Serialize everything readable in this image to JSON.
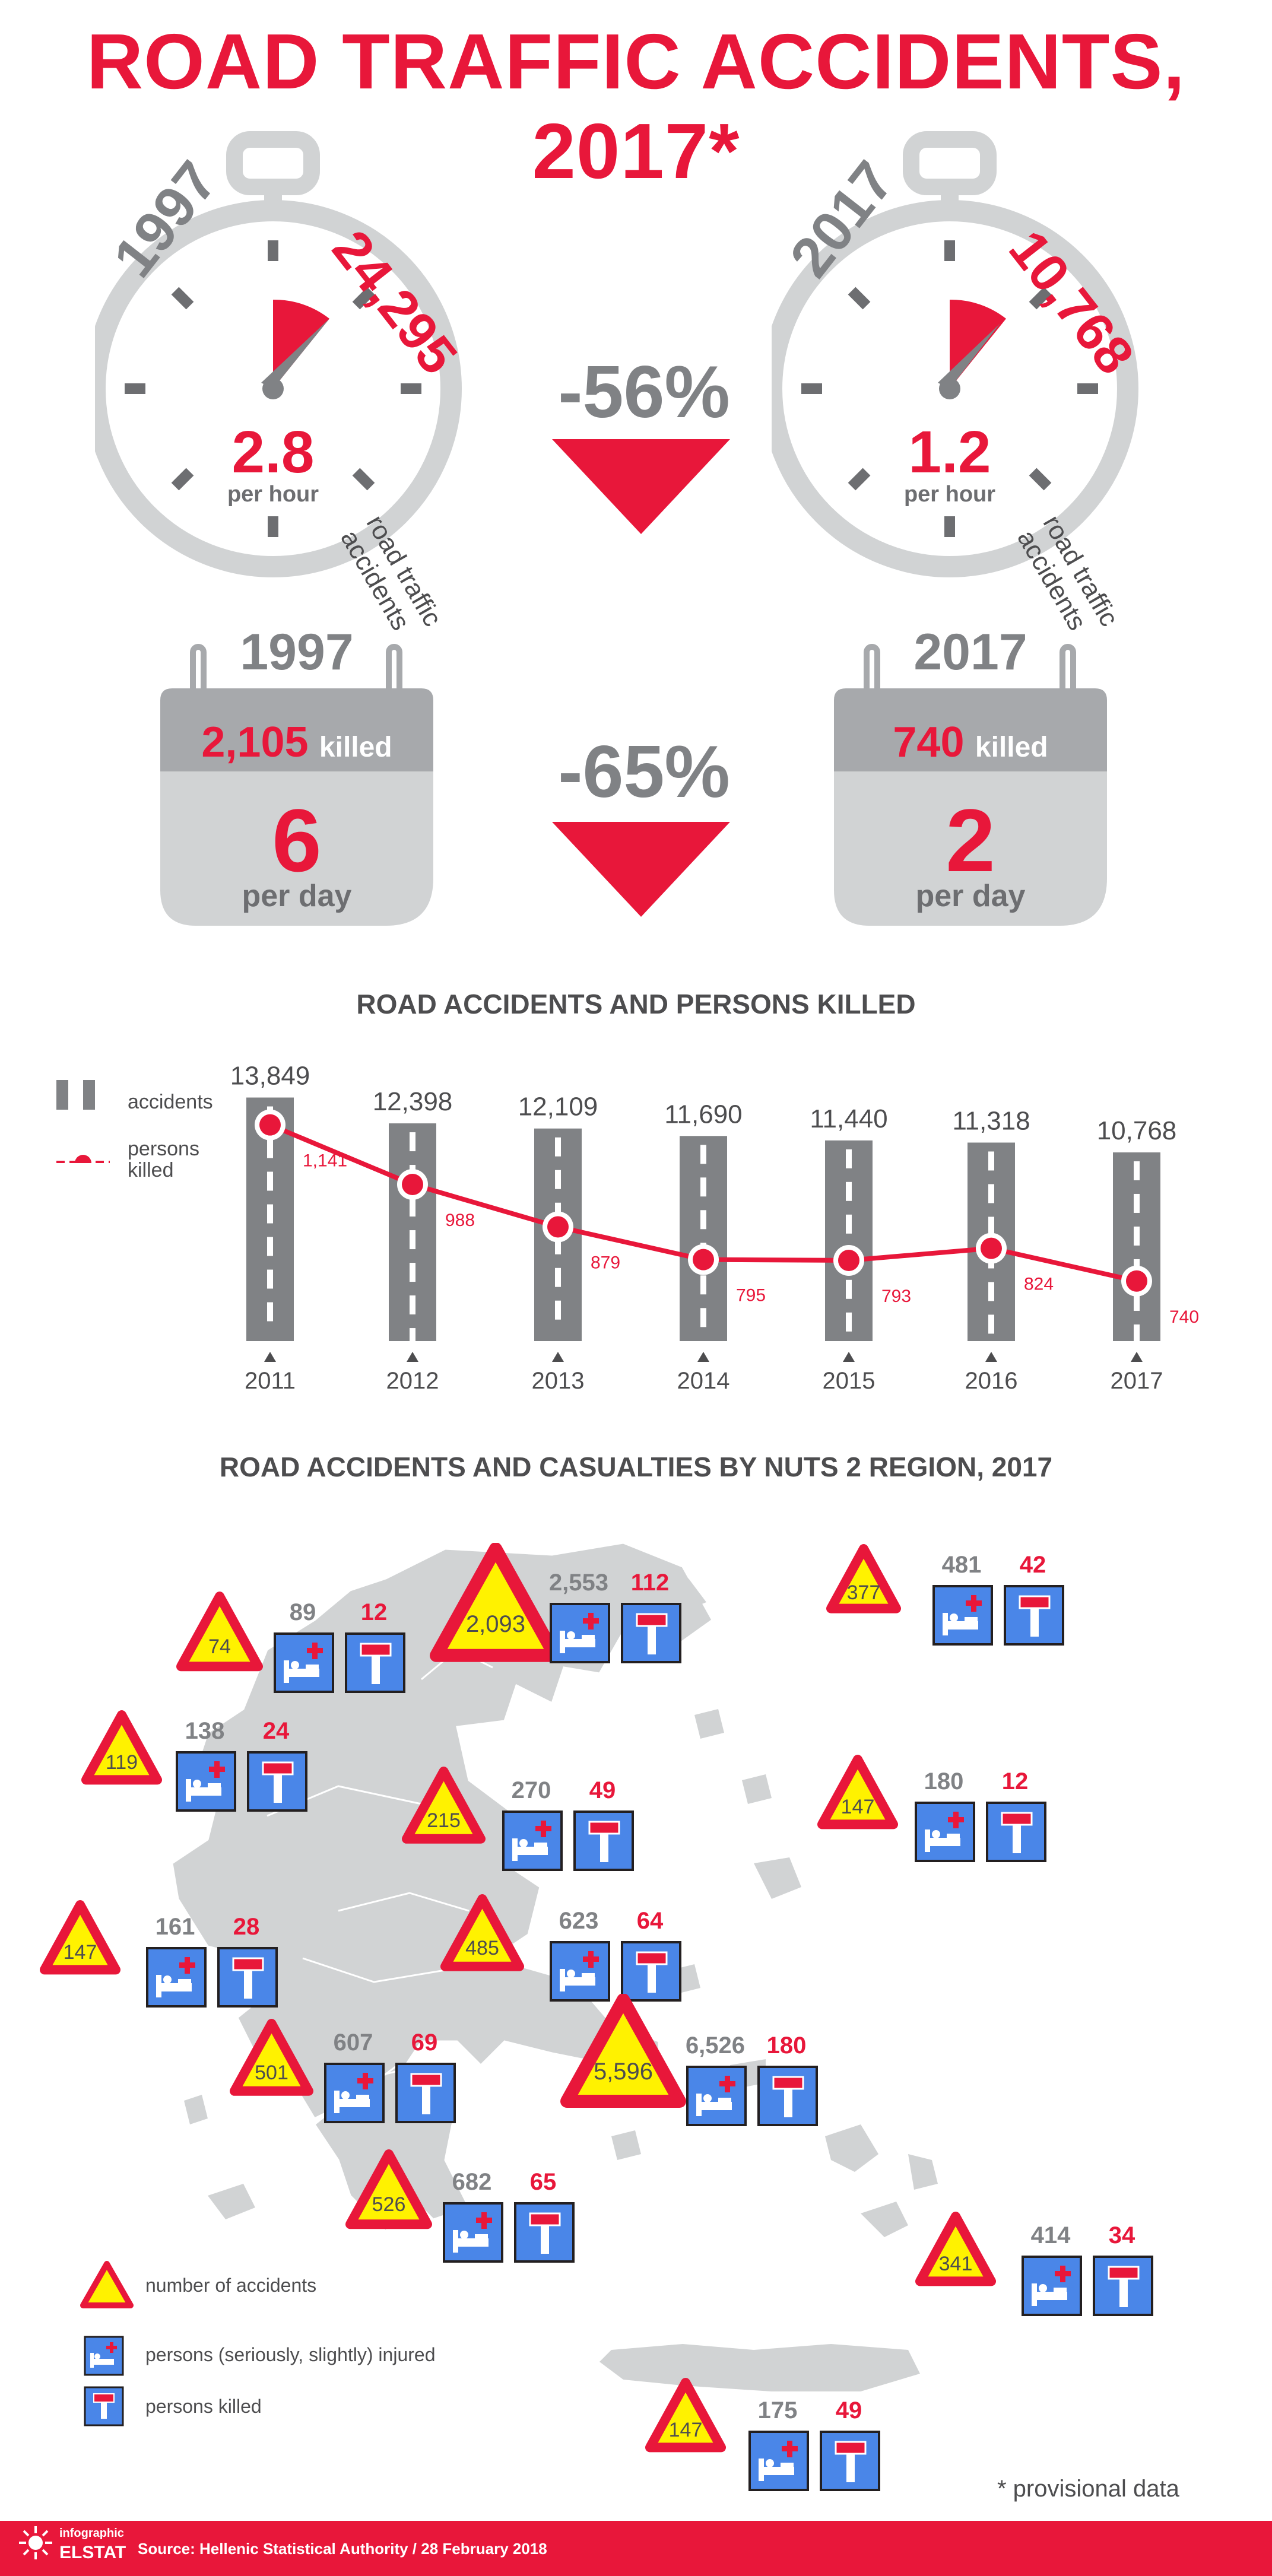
{
  "title": "ROAD TRAFFIC ACCIDENTS, 2017*",
  "stopwatches": [
    {
      "year": "1997",
      "count": "24,295",
      "count_label": "road traffic accidents",
      "rate": "2.8",
      "unit": "per hour"
    },
    {
      "year": "2017",
      "count": "10,768",
      "count_label": "road traffic accidents",
      "rate": "1.2",
      "unit": "per hour"
    }
  ],
  "accidents_change": "-56%",
  "calendars": [
    {
      "year": "1997",
      "killed": "2,105",
      "killed_label": "killed",
      "per_day": "6",
      "per_day_label": "per day"
    },
    {
      "year": "2017",
      "killed": "740",
      "killed_label": "killed",
      "per_day": "2",
      "per_day_label": "per day"
    }
  ],
  "killed_change": "-65%",
  "colors": {
    "accent": "#e8173a",
    "grey": "#808285",
    "light_grey": "#d1d3d4",
    "sign_blue": "#4a86e8",
    "sign_yellow": "#fff200"
  },
  "chart_title": "ROAD ACCIDENTS AND PERSONS KILLED",
  "chart_legend": {
    "accidents": "accidents",
    "killed": "persons killed"
  },
  "chart_data": {
    "type": "bar",
    "categories": [
      "2011",
      "2012",
      "2013",
      "2014",
      "2015",
      "2016",
      "2017"
    ],
    "series": [
      {
        "name": "accidents",
        "values": [
          13849,
          12398,
          12109,
          11690,
          11440,
          11318,
          10768
        ],
        "labels": [
          "13,849",
          "12,398",
          "12,109",
          "11,690",
          "11,440",
          "11,318",
          "10,768"
        ]
      },
      {
        "name": "persons killed",
        "values": [
          1141,
          988,
          879,
          795,
          793,
          824,
          740
        ],
        "labels": [
          "1,141",
          "988",
          "879",
          "795",
          "793",
          "824",
          "740"
        ]
      }
    ]
  },
  "map_title": "ROAD ACCIDENTS AND CASUALTIES BY NUTS 2 REGION, 2017",
  "regions": [
    {
      "accidents": "74",
      "injured": "89",
      "killed": "12"
    },
    {
      "accidents": "2,093",
      "injured": "2,553",
      "killed": "112"
    },
    {
      "accidents": "377",
      "injured": "481",
      "killed": "42"
    },
    {
      "accidents": "119",
      "injured": "138",
      "killed": "24"
    },
    {
      "accidents": "215",
      "injured": "270",
      "killed": "49"
    },
    {
      "accidents": "147",
      "injured": "180",
      "killed": "12"
    },
    {
      "accidents": "147",
      "injured": "161",
      "killed": "28"
    },
    {
      "accidents": "485",
      "injured": "623",
      "killed": "64"
    },
    {
      "accidents": "501",
      "injured": "607",
      "killed": "69"
    },
    {
      "accidents": "5,596",
      "injured": "6,526",
      "killed": "180"
    },
    {
      "accidents": "526",
      "injured": "682",
      "killed": "65"
    },
    {
      "accidents": "341",
      "injured": "414",
      "killed": "34"
    },
    {
      "accidents": "147",
      "injured": "175",
      "killed": "49"
    }
  ],
  "map_legend": {
    "accidents": "number of accidents",
    "injured": "persons (seriously, slightly) injured",
    "killed": "persons killed"
  },
  "footnote": "* provisional data",
  "footer": {
    "logo_line1": "infographic",
    "logo_line2": "ELSTAT",
    "source": "Source: Hellenic Statistical Authority  /  28 February 2018"
  }
}
